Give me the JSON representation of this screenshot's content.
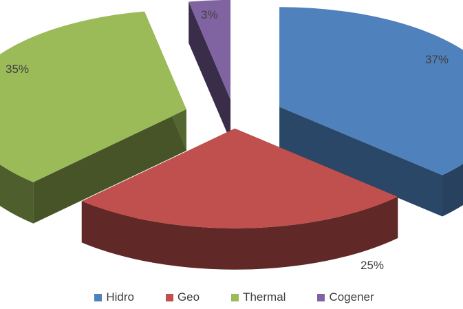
{
  "chart_data": {
    "type": "pie",
    "style": "3d-exploded",
    "title": "",
    "categories": [
      "Hidro",
      "Geo",
      "Thermal",
      "Cogener"
    ],
    "values": [
      37,
      25,
      35,
      3
    ],
    "value_labels": [
      "37%",
      "25%",
      "35%",
      "3%"
    ],
    "colors": [
      "#4f81bd",
      "#c0504d",
      "#9bbb59",
      "#8064a2"
    ],
    "legend_position": "bottom",
    "legend": [
      {
        "label": "Hidro",
        "color": "#4f81bd"
      },
      {
        "label": "Geo",
        "color": "#c0504d"
      },
      {
        "label": "Thermal",
        "color": "#9bbb59"
      },
      {
        "label": "Cogener",
        "color": "#8064a2"
      }
    ]
  }
}
